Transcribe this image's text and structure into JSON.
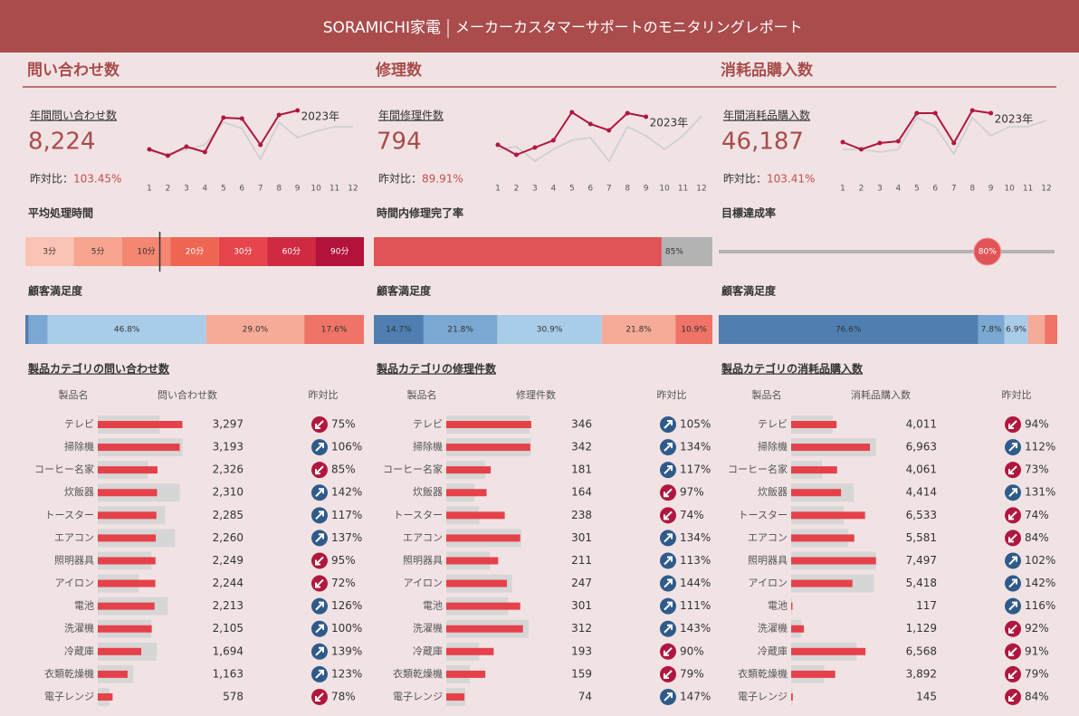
{
  "header": {
    "brand": "SORAMICHI家電",
    "title": "メーカーカスタマーサポートのモニタリングレポート"
  },
  "panels": [
    {
      "title": "問い合わせ数",
      "kpi": {
        "label": "年間問い合わせ数",
        "value": "8,224",
        "yoy_label": "昨対比：",
        "yoy": "103.45%"
      },
      "trend": {
        "type": "line",
        "categories": [
          1,
          2,
          3,
          4,
          5,
          6,
          7,
          8,
          9,
          10,
          11,
          12
        ],
        "ylim": [
          0,
          60
        ],
        "series": [
          {
            "name": "2023年",
            "color": "#b0173f",
            "values": [
              15,
              8,
              18,
              12,
              50,
              49,
              20,
              53,
              58,
              null,
              null,
              null
            ]
          },
          {
            "color": "#d0d0d0",
            "values": [
              13,
              10,
              15,
              20,
              45,
              38,
              4,
              45,
              28,
              35,
              40,
              40
            ]
          }
        ]
      },
      "gauge": {
        "type": "segments",
        "title": "平均処理時間",
        "bins": [
          0,
          3,
          5,
          10,
          20,
          30,
          60,
          90
        ],
        "labels": [
          "3分",
          "5分",
          "10分",
          "20分",
          "30分",
          "60分",
          "90分"
        ],
        "colors": [
          "#fbc3b4",
          "#f8a590",
          "#f48672",
          "#ef6652",
          "#e5454b",
          "#cf2a42",
          "#b3123a"
        ],
        "value": 8.9
      },
      "satisfaction": {
        "type": "stacked_bar",
        "title": "顧客満足度",
        "values": [
          1.0,
          5.6,
          46.8,
          29.0,
          17.6
        ],
        "value_labels": [
          null,
          null,
          "46.8%",
          "29.0%",
          "17.6%"
        ],
        "colors": [
          "#4e7fb0",
          "#7aa8d2",
          "#a9cde9",
          "#f6ab98",
          "#ef7366"
        ]
      },
      "table": {
        "title": "製品カテゴリの問い合わせ数",
        "columns": [
          "製品名",
          "問い合わせ数",
          "昨対比"
        ],
        "rows": [
          "テレビ",
          "掃除機",
          "コーヒー名家",
          "炊飯器",
          "トースター",
          "エアコン",
          "照明器具",
          "アイロン",
          "電池",
          "洗濯機",
          "冷蔵庫",
          "衣類乾燥機",
          "電子レンジ"
        ],
        "xlim": [
          0,
          3350
        ],
        "color": "#e5414a",
        "prev_color": "#d6d6d6",
        "up_color": "#2f5b8a",
        "down_color": "#b0173f",
        "values": [
          3297,
          3193,
          2326,
          2310,
          2285,
          2260,
          2249,
          2244,
          2213,
          2105,
          1694,
          1163,
          578
        ],
        "value_labels": [
          "3,297",
          "3,193",
          "2,326",
          "2,310",
          "2,285",
          "2,260",
          "2,249",
          "2,244",
          "2,213",
          "2,105",
          "1,694",
          "1,163",
          "578"
        ],
        "previous": [
          2410,
          3300,
          1950,
          3190,
          2620,
          3010,
          2090,
          1600,
          2730,
          2090,
          2300,
          1380,
          460
        ],
        "yoy": [
          75,
          106,
          85,
          142,
          117,
          137,
          95,
          72,
          126,
          100,
          139,
          123,
          78
        ],
        "yoy_labels": [
          "75%",
          "106%",
          "85%",
          "142%",
          "117%",
          "137%",
          "95%",
          "72%",
          "126%",
          "100%",
          "139%",
          "123%",
          "78%"
        ]
      }
    },
    {
      "title": "修理数",
      "kpi": {
        "label": "年間修理件数",
        "value": "794",
        "yoy_label": "昨対比：",
        "yoy": "89.91%"
      },
      "trend": {
        "type": "line",
        "categories": [
          1,
          2,
          3,
          4,
          5,
          6,
          7,
          8,
          9,
          10,
          11,
          12
        ],
        "ylim": [
          0,
          60
        ],
        "series": [
          {
            "name": "2023年",
            "color": "#b0173f",
            "values": [
              20,
              9,
              17,
              25,
              56,
              43,
              36,
              55,
              51,
              null,
              null,
              null
            ]
          },
          {
            "color": "#d0d0d0",
            "values": [
              15,
              18,
              2,
              15,
              25,
              28,
              2,
              40,
              30,
              15,
              30,
              52
            ]
          }
        ]
      },
      "gauge": {
        "type": "progress",
        "title": "時間内修理完了率",
        "value": 85,
        "value_label": "85%",
        "xlim": [
          0,
          100
        ],
        "color": "#e05457",
        "rest_color": "#b3b3b3"
      },
      "satisfaction": {
        "type": "stacked_bar",
        "title": "顧客満足度",
        "values": [
          14.7,
          21.8,
          30.9,
          21.8,
          10.9
        ],
        "value_labels": [
          "14.7%",
          "21.8%",
          "30.9%",
          "21.8%",
          "10.9%"
        ],
        "colors": [
          "#4e7fb0",
          "#7aa8d2",
          "#a9cde9",
          "#f6ab98",
          "#ef7366"
        ]
      },
      "table": {
        "title": "製品カテゴリの修理件数",
        "columns": [
          "製品名",
          "修理件数",
          "昨対比"
        ],
        "rows": [
          "テレビ",
          "掃除機",
          "コーヒー名家",
          "炊飯器",
          "トースター",
          "エアコン",
          "照明器具",
          "アイロン",
          "電池",
          "洗濯機",
          "冷蔵庫",
          "衣類乾燥機",
          "電子レンジ"
        ],
        "xlim": [
          0,
          350
        ],
        "color": "#e5414a",
        "prev_color": "#d6d6d6",
        "up_color": "#2f5b8a",
        "down_color": "#b0173f",
        "values": [
          346,
          342,
          181,
          164,
          238,
          301,
          211,
          247,
          301,
          312,
          193,
          159,
          74
        ],
        "previous": [
          340,
          345,
          160,
          115,
          134,
          305,
          178,
          268,
          253,
          335,
          134,
          97,
          78
        ],
        "yoy": [
          105,
          134,
          117,
          97,
          74,
          134,
          113,
          144,
          111,
          143,
          90,
          79,
          147
        ],
        "yoy_labels": [
          "105%",
          "134%",
          "117%",
          "97%",
          "74%",
          "134%",
          "113%",
          "144%",
          "111%",
          "143%",
          "90%",
          "79%",
          "147%"
        ]
      }
    },
    {
      "title": "消耗品購入数",
      "kpi": {
        "label": "年間消耗品購入数",
        "value": "46,187",
        "yoy_label": "昨対比：",
        "yoy": "103.41%"
      },
      "trend": {
        "type": "line",
        "categories": [
          1,
          2,
          3,
          4,
          5,
          6,
          7,
          8,
          9,
          10,
          11,
          12
        ],
        "ylim": [
          0,
          60
        ],
        "series": [
          {
            "name": "2023年",
            "color": "#b0173f",
            "values": [
              23,
              15,
              22,
              24,
              55,
              55,
              22,
              58,
              55,
              null,
              null,
              null
            ]
          },
          {
            "color": "#d0d0d0",
            "values": [
              15,
              15,
              12,
              15,
              50,
              40,
              10,
              50,
              30,
              40,
              40,
              47
            ]
          }
        ]
      },
      "gauge": {
        "type": "slider",
        "title": "目標達成率",
        "value": 80,
        "value_label": "80%",
        "xlim": [
          0,
          100
        ],
        "color": "#e05457",
        "track_color": "#b3b3b3"
      },
      "satisfaction": {
        "type": "stacked_bar",
        "title": "顧客満足度",
        "values": [
          76.6,
          7.8,
          6.9,
          5.0,
          3.7
        ],
        "value_labels": [
          "76.6%",
          "7.8%",
          "6.9%",
          null,
          null
        ],
        "colors": [
          "#4e7fb0",
          "#7aa8d2",
          "#a9cde9",
          "#f6ab98",
          "#ef7366"
        ]
      },
      "table": {
        "title": "製品カテゴリの消耗品購入数",
        "columns": [
          "製品名",
          "消耗品購入数",
          "昨対比"
        ],
        "rows": [
          "テレビ",
          "掃除機",
          "コーヒー名家",
          "炊飯器",
          "トースター",
          "エアコン",
          "照明器具",
          "アイロン",
          "電池",
          "洗濯機",
          "冷蔵庫",
          "衣類乾燥機",
          "電子レンジ"
        ],
        "xlim": [
          0,
          7600
        ],
        "color": "#e5414a",
        "prev_color": "#d6d6d6",
        "up_color": "#2f5b8a",
        "down_color": "#b0173f",
        "values": [
          4011,
          6963,
          4061,
          4414,
          6533,
          5581,
          7497,
          5418,
          117,
          1129,
          6568,
          3892,
          145
        ],
        "value_labels": [
          "4,011",
          "6,963",
          "4,061",
          "4,414",
          "6,533",
          "5,581",
          "7,497",
          "5,418",
          "117",
          "1,129",
          "6,568",
          "3,892",
          "145"
        ],
        "previous": [
          3670,
          7500,
          2770,
          5540,
          4650,
          5050,
          7500,
          7330,
          100,
          900,
          5790,
          2930,
          120
        ],
        "yoy": [
          94,
          112,
          73,
          131,
          74,
          84,
          102,
          142,
          116,
          92,
          91,
          79,
          84
        ],
        "yoy_labels": [
          "94%",
          "112%",
          "73%",
          "131%",
          "74%",
          "84%",
          "102%",
          "142%",
          "116%",
          "92%",
          "91%",
          "79%",
          "84%"
        ]
      }
    }
  ]
}
